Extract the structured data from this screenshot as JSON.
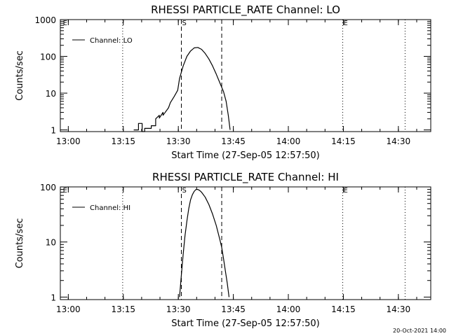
{
  "footer": {
    "timestamp": "20-Oct-2021 14:00"
  },
  "chart_data": [
    {
      "type": "line",
      "title": "RHESSI PARTICLE_RATE Channel: LO",
      "xlabel": "Start Time (27-Sep-05 12:57:50)",
      "ylabel": "Counts/sec",
      "yscale": "log",
      "xlim": [
        0,
        101
      ],
      "ylim": [
        0.9,
        1000
      ],
      "xtick_values": [
        2.17,
        17.17,
        32.17,
        47.17,
        62.17,
        77.17,
        92.17
      ],
      "xtick_labels": [
        "13:00",
        "13:15",
        "13:30",
        "13:45",
        "14:00",
        "14:15",
        "14:30"
      ],
      "ytick_values": [
        1,
        10,
        100,
        1000
      ],
      "ytick_labels": [
        "1",
        "10",
        "100",
        "1000"
      ],
      "legend": {
        "label": "Channel: LO",
        "position": "top-left"
      },
      "markers": [
        {
          "label": "E",
          "x": 0.5,
          "style": "dotted",
          "show_line": false
        },
        {
          "label": "",
          "x": 17.0,
          "style": "dotted",
          "show_line": true
        },
        {
          "label": "S",
          "x": 33.0,
          "style": "dashed",
          "show_line": true
        },
        {
          "label": "",
          "x": 44.0,
          "style": "dashed",
          "show_line": true
        },
        {
          "label": "E",
          "x": 77.0,
          "style": "dotted",
          "show_line": true
        },
        {
          "label": "",
          "x": 94.0,
          "style": "dotted",
          "show_line": true
        }
      ],
      "series": [
        {
          "name": "Channel: LO",
          "x": [
            20.0,
            21.3,
            21.3,
            22.3,
            22.3,
            23.0,
            23.0,
            24.8,
            24.8,
            26.0,
            26.0,
            27.0,
            27.0,
            28.0,
            28.0,
            29.5,
            30.0,
            31.0,
            32.0,
            32.5,
            33.5,
            34.5,
            35.5,
            36.5,
            37.5,
            38.5,
            39.5,
            40.5,
            41.5,
            42.5,
            43.5,
            44.5,
            45.2,
            45.8,
            46.3
          ],
          "y": [
            1,
            1,
            1.5,
            1.5,
            0.9,
            0.9,
            1.1,
            1.1,
            1.3,
            1.3,
            2.0,
            2.5,
            2.1,
            3.0,
            2.5,
            4.0,
            5.5,
            8.0,
            12,
            25,
            55,
            100,
            140,
            170,
            175,
            155,
            120,
            85,
            55,
            33,
            19,
            11,
            6,
            2.5,
            1
          ]
        }
      ]
    },
    {
      "type": "line",
      "title": "RHESSI PARTICLE_RATE Channel: HI",
      "xlabel": "Start Time (27-Sep-05 12:57:50)",
      "ylabel": "Counts/sec",
      "yscale": "log",
      "xlim": [
        0,
        101
      ],
      "ylim": [
        0.9,
        100
      ],
      "xtick_values": [
        2.17,
        17.17,
        32.17,
        47.17,
        62.17,
        77.17,
        92.17
      ],
      "xtick_labels": [
        "13:00",
        "13:15",
        "13:30",
        "13:45",
        "14:00",
        "14:15",
        "14:30"
      ],
      "ytick_values": [
        1,
        10,
        100
      ],
      "ytick_labels": [
        "1",
        "10",
        "100"
      ],
      "legend": {
        "label": "Channel: HI",
        "position": "top-left"
      },
      "markers": [
        {
          "label": "E",
          "x": 0.5,
          "style": "dotted",
          "show_line": false
        },
        {
          "label": "",
          "x": 17.0,
          "style": "dotted",
          "show_line": true
        },
        {
          "label": "S",
          "x": 33.0,
          "style": "dashed",
          "show_line": true
        },
        {
          "label": "",
          "x": 44.0,
          "style": "dashed",
          "show_line": true
        },
        {
          "label": "E",
          "x": 77.0,
          "style": "dotted",
          "show_line": true
        },
        {
          "label": "",
          "x": 94.0,
          "style": "dotted",
          "show_line": true
        }
      ],
      "series": [
        {
          "name": "Channel: HI",
          "x": [
            32.5,
            33.0,
            33.5,
            34.0,
            34.5,
            35.0,
            35.5,
            36.0,
            36.5,
            37.0,
            37.5,
            38.0,
            38.5,
            39.5,
            40.5,
            41.5,
            42.5,
            43.5,
            44.0,
            44.5,
            45.0,
            45.5,
            46.0
          ],
          "y": [
            1,
            2.5,
            6,
            13,
            24,
            40,
            58,
            72,
            83,
            90,
            90,
            86,
            80,
            65,
            48,
            32,
            20,
            11,
            8,
            5,
            3,
            1.8,
            1
          ]
        }
      ]
    }
  ]
}
